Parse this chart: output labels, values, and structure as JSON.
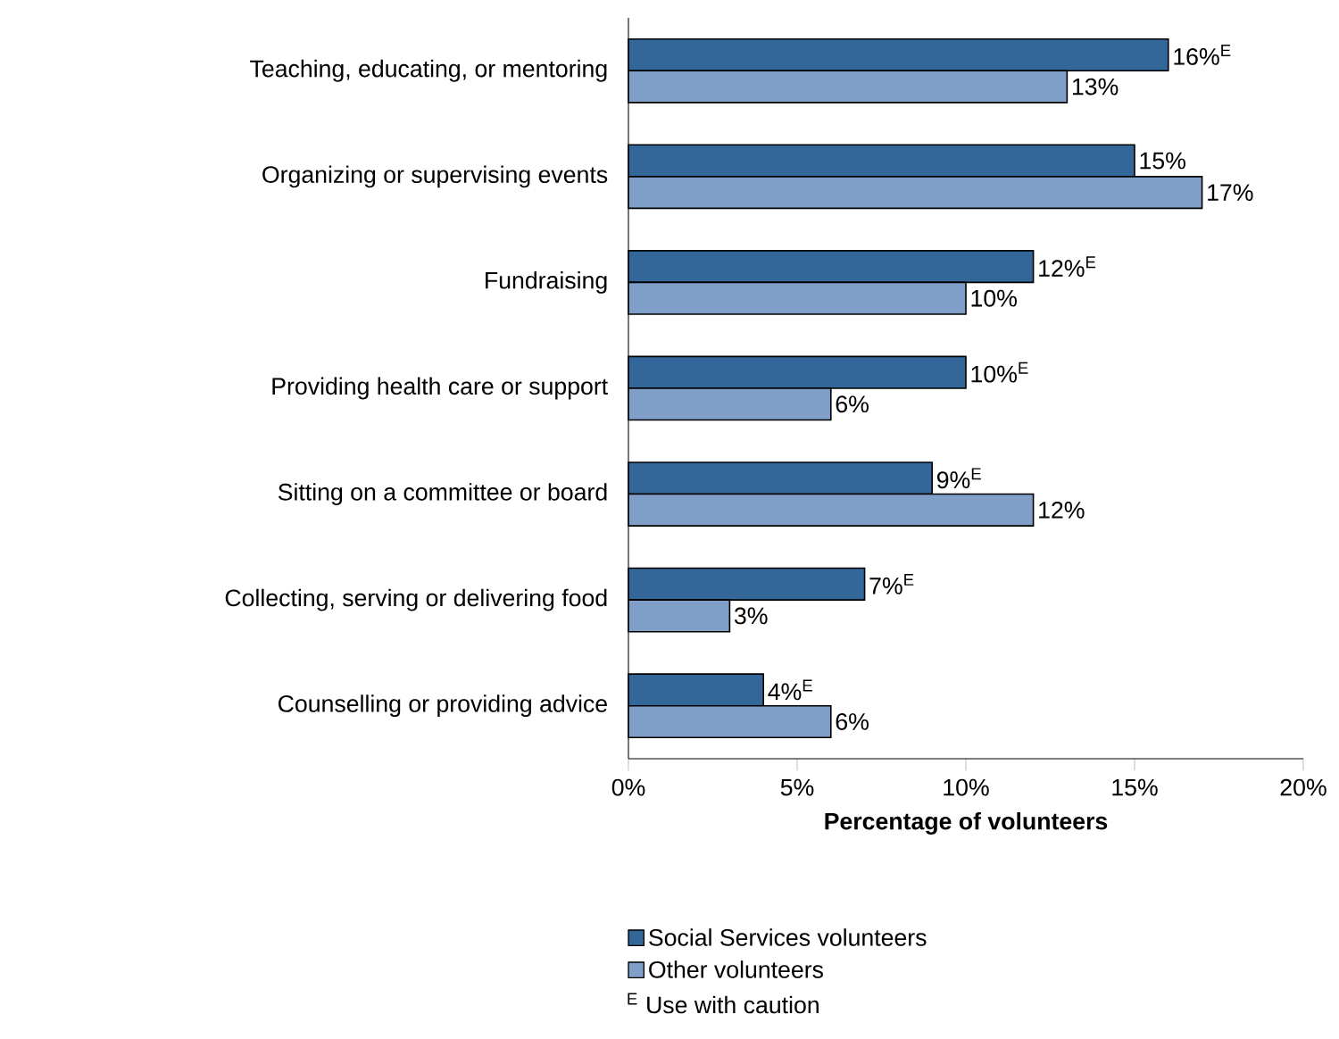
{
  "chart_data": {
    "type": "bar",
    "orientation": "horizontal",
    "xlabel": "Percentage of volunteers",
    "categories": [
      "Teaching, educating, or mentoring",
      "Organizing or supervising events",
      "Fundraising",
      "Providing health care or support",
      "Sitting on a committee or board",
      "Collecting, serving or delivering food",
      "Counselling or providing advice"
    ],
    "series": [
      {
        "name": "Social Services volunteers",
        "color": "#336699",
        "values": [
          16,
          15,
          12,
          10,
          9,
          7,
          4
        ],
        "value_labels": [
          "16%$^{E}$",
          "15%",
          "12%$^{E}$",
          "10%$^{E}$",
          "9%$^{E}$",
          "7%$^{E}$",
          "4%$^{E}$"
        ]
      },
      {
        "name": "Other volunteers",
        "color": "#7f9fc8",
        "values": [
          13,
          17,
          10,
          6,
          12,
          3,
          6
        ],
        "value_labels": [
          "13%",
          "17%",
          "10%",
          "6%",
          "12%",
          "3%",
          "6%"
        ]
      }
    ],
    "xlim": [
      0,
      20
    ],
    "xticks": [
      {
        "value": 0,
        "label": "0%"
      },
      {
        "value": 5,
        "label": "5%"
      },
      {
        "value": 10,
        "label": "10%"
      },
      {
        "value": 15,
        "label": "15%"
      },
      {
        "value": 20,
        "label": "20%"
      }
    ],
    "legend": "bottom",
    "grid": false,
    "annotations": [
      "$^{E}$ Use with caution"
    ]
  }
}
